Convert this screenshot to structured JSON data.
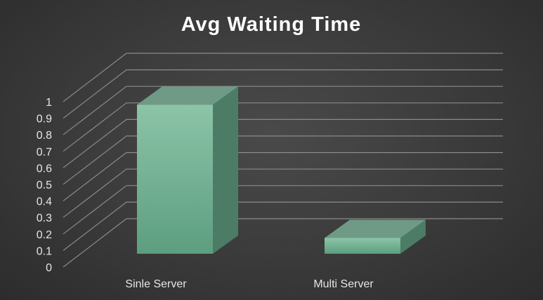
{
  "chart_data": {
    "type": "bar",
    "title": "Avg Waiting Time",
    "categories": [
      "Sinle Server",
      "Multi Server"
    ],
    "values": [
      0.945,
      0.1
    ],
    "ylim": [
      0,
      1
    ],
    "yticks": [
      "0",
      "0.1",
      "0.2",
      "0.3",
      "0.4",
      "0.5",
      "0.6",
      "0.7",
      "0.8",
      "0.9",
      "1"
    ],
    "grid": true,
    "legend": "none",
    "style": "3d-column",
    "colors": {
      "front_top": "#8cc4a8",
      "front_bottom": "#5d9e80",
      "side": "#4c7c66",
      "top": "#6e9a86"
    }
  }
}
